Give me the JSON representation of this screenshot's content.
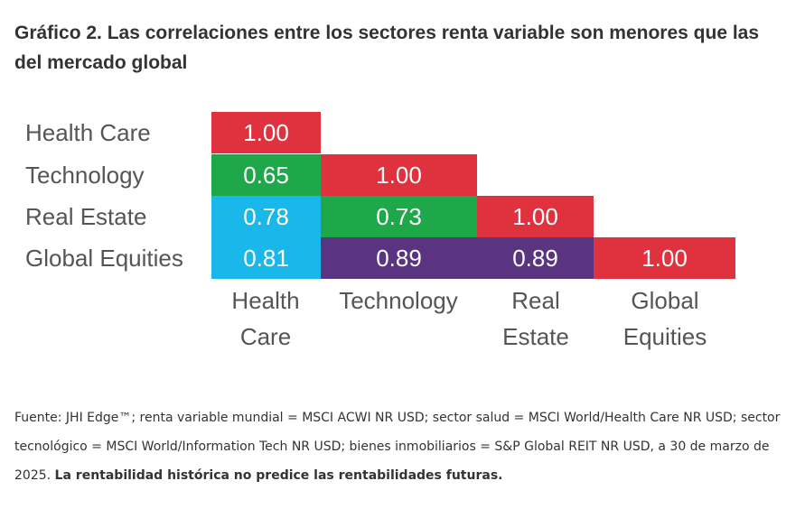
{
  "title": "Gráfico 2. Las correlaciones entre los sectores renta variable son menores que las del mercado global",
  "source": {
    "text": "Fuente: JHI Edge™; renta variable mundial = MSCI ACWI NR USD; sector salud = MSCI World/Health Care NR USD; sector tecnológico = MSCI World/Information Tech NR USD; bienes inmobiliarios = S&P Global REIT NR USD, a 30 de marzo de 2025.",
    "disclaimer": "La rentabilidad histórica no predice las rentabilidades futuras."
  },
  "chart_data": {
    "type": "heatmap",
    "rows": [
      "Health Care",
      "Technology",
      "Real Estate",
      "Global Equities"
    ],
    "columns": [
      "Health Care",
      "Technology",
      "Real Estate",
      "Global Equities"
    ],
    "values": [
      [
        1.0,
        null,
        null,
        null
      ],
      [
        0.65,
        1.0,
        null,
        null
      ],
      [
        0.78,
        0.73,
        1.0,
        null
      ],
      [
        0.81,
        0.89,
        0.89,
        1.0
      ]
    ],
    "labels": [
      [
        "1.00",
        "",
        "",
        ""
      ],
      [
        "0.65",
        "1.00",
        "",
        ""
      ],
      [
        "0.78",
        "0.73",
        "1.00",
        ""
      ],
      [
        "0.81",
        "0.89",
        "0.89",
        "1.00"
      ]
    ],
    "colors": [
      [
        "#e0323e",
        null,
        null,
        null
      ],
      [
        "#1fa84a",
        "#e0323e",
        null,
        null
      ],
      [
        "#1ab8ea",
        "#1fa84a",
        "#e0323e",
        null
      ],
      [
        "#1ab8ea",
        "#5a3480",
        "#5a3480",
        "#e0323e"
      ]
    ],
    "value_text_color": "#ffffff",
    "label_color": "#555555"
  }
}
